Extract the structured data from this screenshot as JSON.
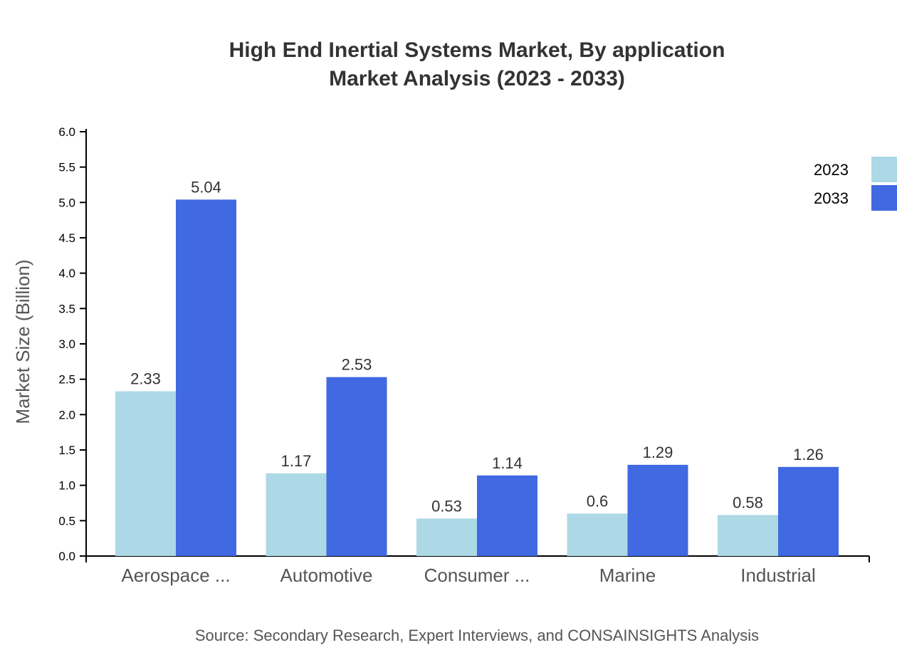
{
  "chart_data": {
    "type": "bar",
    "title": "High End Inertial Systems Market, By application",
    "subtitle": "Market Analysis (2023 - 2033)",
    "xlabel": "",
    "ylabel": "Market Size (Billion)",
    "ylim": [
      0,
      6
    ],
    "yticks": [
      "0.0",
      "0.5",
      "1.0",
      "1.5",
      "2.0",
      "2.5",
      "3.0",
      "3.5",
      "4.0",
      "4.5",
      "5.0",
      "5.5",
      "6.0"
    ],
    "categories": [
      "Aerospace ...",
      "Automotive",
      "Consumer ...",
      "Marine",
      "Industrial"
    ],
    "series": [
      {
        "name": "2023",
        "color": "#add8e6",
        "values": [
          2.33,
          1.17,
          0.53,
          0.6,
          0.58
        ]
      },
      {
        "name": "2033",
        "color": "#4169e1",
        "values": [
          5.04,
          2.53,
          1.14,
          1.29,
          1.26
        ]
      }
    ],
    "legend_position": "top-right",
    "grid": false,
    "source": "Source: Secondary Research, Expert Interviews, and CONSAINSIGHTS Analysis"
  }
}
